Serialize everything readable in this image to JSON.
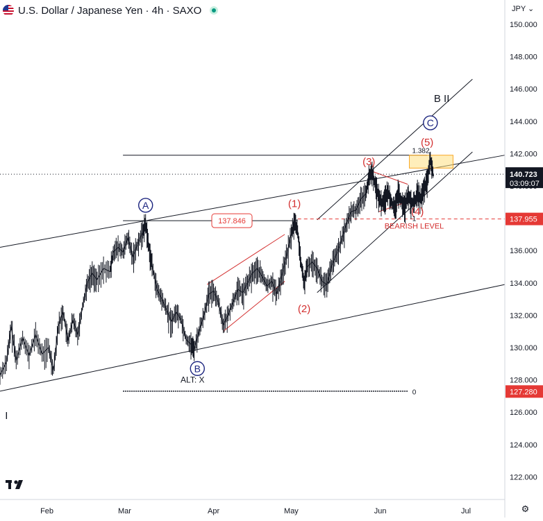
{
  "header": {
    "title": "U.S. Dollar / Japanese Yen · 4h · SAXO",
    "currency": "JPY",
    "currency_caret": "⌄"
  },
  "colors": {
    "price": "#131722",
    "wave_red": "#d32f2f",
    "wave_blue": "#1a237e",
    "last_badge": "#131722",
    "level_badge": "#e53935",
    "low_badge": "#e53935",
    "fib_box": "#ffe082"
  },
  "chart_data": {
    "type": "line",
    "title": "U.S. Dollar / Japanese Yen · 4h · SAXO",
    "xlabel": "",
    "ylabel": "JPY",
    "ylim": [
      120.6,
      151.5
    ],
    "x_range": [
      0,
      156
    ],
    "y_ticks": [
      "150.000",
      "148.000",
      "146.000",
      "144.000",
      "142.000",
      "140.000",
      "138.000",
      "136.000",
      "134.000",
      "132.000",
      "130.000",
      "128.000",
      "126.000",
      "124.000",
      "122.000"
    ],
    "y_tick_values": [
      150,
      148,
      146,
      144,
      142,
      140,
      138,
      136,
      134,
      132,
      130,
      128,
      126,
      124,
      122
    ],
    "x_ticks": [
      {
        "label": "Feb",
        "x": 14.5
      },
      {
        "label": "Mar",
        "x": 38.5
      },
      {
        "label": "Apr",
        "x": 66
      },
      {
        "label": "May",
        "x": 90
      },
      {
        "label": "Jun",
        "x": 117.5
      },
      {
        "label": "Jul",
        "x": 144
      }
    ],
    "price_series": {
      "name": "USDJPY 4h",
      "points": [
        [
          0,
          128.3
        ],
        [
          2,
          129.1
        ],
        [
          3.5,
          131.3
        ],
        [
          5,
          129.2
        ],
        [
          7,
          130.6
        ],
        [
          9,
          129.5
        ],
        [
          11,
          130.8
        ],
        [
          13,
          129.6
        ],
        [
          15,
          130.0
        ],
        [
          16.5,
          128.6
        ],
        [
          18,
          131.3
        ],
        [
          19.5,
          132.2
        ],
        [
          21,
          130.4
        ],
        [
          22.5,
          131.7
        ],
        [
          24,
          130.8
        ],
        [
          25.5,
          132.5
        ],
        [
          27,
          134.0
        ],
        [
          28.5,
          134.6
        ],
        [
          30,
          134.2
        ],
        [
          32,
          134.9
        ],
        [
          34,
          134.7
        ],
        [
          35,
          135.9
        ],
        [
          36.5,
          136.2
        ],
        [
          38,
          135.9
        ],
        [
          39.5,
          136.8
        ],
        [
          41,
          135.6
        ],
        [
          42.5,
          136.4
        ],
        [
          44,
          137.1
        ],
        [
          45,
          137.7
        ],
        [
          46,
          136.2
        ],
        [
          47,
          135.1
        ],
        [
          48.5,
          133.6
        ],
        [
          50,
          133.0
        ],
        [
          51.5,
          132.3
        ],
        [
          53,
          131.6
        ],
        [
          54.5,
          132.2
        ],
        [
          56,
          131.7
        ],
        [
          57.5,
          130.5
        ],
        [
          59,
          130.2
        ],
        [
          60,
          129.9
        ],
        [
          61.5,
          131.0
        ],
        [
          63,
          132.0
        ],
        [
          64.5,
          133.3
        ],
        [
          66,
          133.5
        ],
        [
          67.5,
          132.8
        ],
        [
          69,
          131.4
        ],
        [
          70.5,
          132.0
        ],
        [
          72,
          132.8
        ],
        [
          73.5,
          133.6
        ],
        [
          75,
          133.4
        ],
        [
          76.5,
          134.0
        ],
        [
          78,
          134.6
        ],
        [
          79.5,
          134.9
        ],
        [
          81,
          134.4
        ],
        [
          82.5,
          133.8
        ],
        [
          84,
          134.1
        ],
        [
          85.5,
          133.3
        ],
        [
          87,
          134.4
        ],
        [
          88.5,
          135.6
        ],
        [
          90,
          137.0
        ],
        [
          91,
          137.8
        ],
        [
          92,
          137.2
        ],
        [
          93,
          135.2
        ],
        [
          94,
          134.0
        ],
        [
          95,
          135.0
        ],
        [
          96.5,
          135.3
        ],
        [
          98,
          134.9
        ],
        [
          99.5,
          134.1
        ],
        [
          101,
          133.9
        ],
        [
          102.5,
          135.1
        ],
        [
          104,
          135.8
        ],
        [
          105.5,
          136.6
        ],
        [
          107,
          137.6
        ],
        [
          108.5,
          138.4
        ],
        [
          110,
          138.5
        ],
        [
          111.5,
          139.2
        ],
        [
          113,
          139.5
        ],
        [
          114,
          140.5
        ],
        [
          115,
          140.9
        ],
        [
          116,
          140.0
        ],
        [
          117,
          139.4
        ],
        [
          118,
          138.9
        ],
        [
          119,
          139.3
        ],
        [
          120,
          139.6
        ],
        [
          121,
          139.0
        ],
        [
          122,
          138.5
        ],
        [
          123,
          139.6
        ],
        [
          124,
          139.1
        ],
        [
          125,
          138.7
        ],
        [
          126,
          139.4
        ],
        [
          127,
          139.0
        ],
        [
          128,
          138.9
        ],
        [
          129,
          139.6
        ],
        [
          130,
          139.2
        ],
        [
          131,
          139.8
        ],
        [
          132,
          140.3
        ],
        [
          133,
          141.6
        ],
        [
          134,
          140.6
        ]
      ]
    },
    "channels": [
      {
        "name": "outer-channel-upper",
        "from": [
          0,
          136.2
        ],
        "to": [
          156,
          141.9
        ]
      },
      {
        "name": "outer-channel-lower",
        "from": [
          0,
          127.3
        ],
        "to": [
          156,
          133.9
        ]
      },
      {
        "name": "inner-channel-upper",
        "from": [
          98,
          137.9
        ],
        "to": [
          146,
          146.6
        ]
      },
      {
        "name": "inner-channel-lower",
        "from": [
          98,
          133.4
        ],
        "to": [
          146,
          142.1
        ]
      }
    ],
    "wedges": [
      {
        "name": "wave2-wedge-upper",
        "from": [
          64,
          133.9
        ],
        "to": [
          88,
          137.0
        ]
      },
      {
        "name": "wave2-wedge-lower",
        "from": [
          69,
          131.0
        ],
        "to": [
          88,
          134.1
        ]
      },
      {
        "name": "wave4-triangle-upper",
        "from": [
          115,
          140.9
        ],
        "to": [
          126,
          140.1
        ]
      },
      {
        "name": "wave4-triangle-lower",
        "from": [
          117,
          138.4
        ],
        "to": [
          130,
          139.3
        ]
      }
    ],
    "horizontal_lines": [
      {
        "name": "fib-1382-line",
        "value": 141.9,
        "x_from": 38,
        "x_to": 132,
        "style": "solid"
      },
      {
        "name": "level-137-line",
        "value": 137.846,
        "x_from": 38,
        "x_to": 92,
        "style": "solid"
      },
      {
        "name": "zero-level-line",
        "value": 127.3,
        "x_from": 38,
        "x_to": 126,
        "style": "dotted"
      },
      {
        "name": "bearish-level-line",
        "value": 137.955,
        "x_from": 92,
        "x_to": 156,
        "style": "dashed"
      },
      {
        "name": "last-price-line",
        "value": 140.723,
        "x_from": 0,
        "x_to": 156,
        "style": "dotted"
      }
    ],
    "fib_box": {
      "label": "1.382",
      "x_from": 126.5,
      "x_to": 140,
      "y_from": 141.1,
      "y_to": 141.9
    },
    "wave_labels": [
      {
        "name": "wave-A-label",
        "text": "A",
        "x": 45,
        "y": 138.8,
        "kind": "circle"
      },
      {
        "name": "wave-B-label",
        "text": "B",
        "x": 61,
        "y": 128.7,
        "kind": "circle"
      },
      {
        "name": "wave-C-label",
        "text": "C",
        "x": 133,
        "y": 143.9,
        "kind": "circle"
      },
      {
        "name": "wave-1-label",
        "text": "(1)",
        "x": 91,
        "y": 138.9,
        "kind": "red"
      },
      {
        "name": "wave-2-label",
        "text": "(2)",
        "x": 94,
        "y": 132.4,
        "kind": "red"
      },
      {
        "name": "wave-3-label",
        "text": "(3)",
        "x": 114,
        "y": 141.5,
        "kind": "red"
      },
      {
        "name": "wave-4-label",
        "text": "(4)",
        "x": 129,
        "y": 138.4,
        "kind": "red"
      },
      {
        "name": "wave-5-label",
        "text": "(5)",
        "x": 132,
        "y": 142.7,
        "kind": "red"
      },
      {
        "name": "wave-BII-label",
        "text": "B II",
        "x": 136.5,
        "y": 145.4,
        "kind": "black"
      },
      {
        "name": "alt-x-label",
        "text": "ALT: X",
        "x": 59.5,
        "y": 128.0,
        "kind": "small"
      },
      {
        "name": "wave-I-label",
        "text": "I",
        "x": 2,
        "y": 125.8,
        "kind": "black"
      },
      {
        "name": "fib-one-label",
        "text": "1",
        "x": 128,
        "y": 138.0,
        "kind": "tiny"
      },
      {
        "name": "fib-zero-label",
        "text": "0",
        "x": 128,
        "y": 127.28,
        "kind": "tiny"
      }
    ],
    "annotations": {
      "bearish_level": "BEARISH LEVEL",
      "level_value": "137.846"
    },
    "price_badges": {
      "last_price": "140.723",
      "countdown": "03:09:07",
      "bearish_level": "137.955",
      "low": "127.280"
    }
  }
}
